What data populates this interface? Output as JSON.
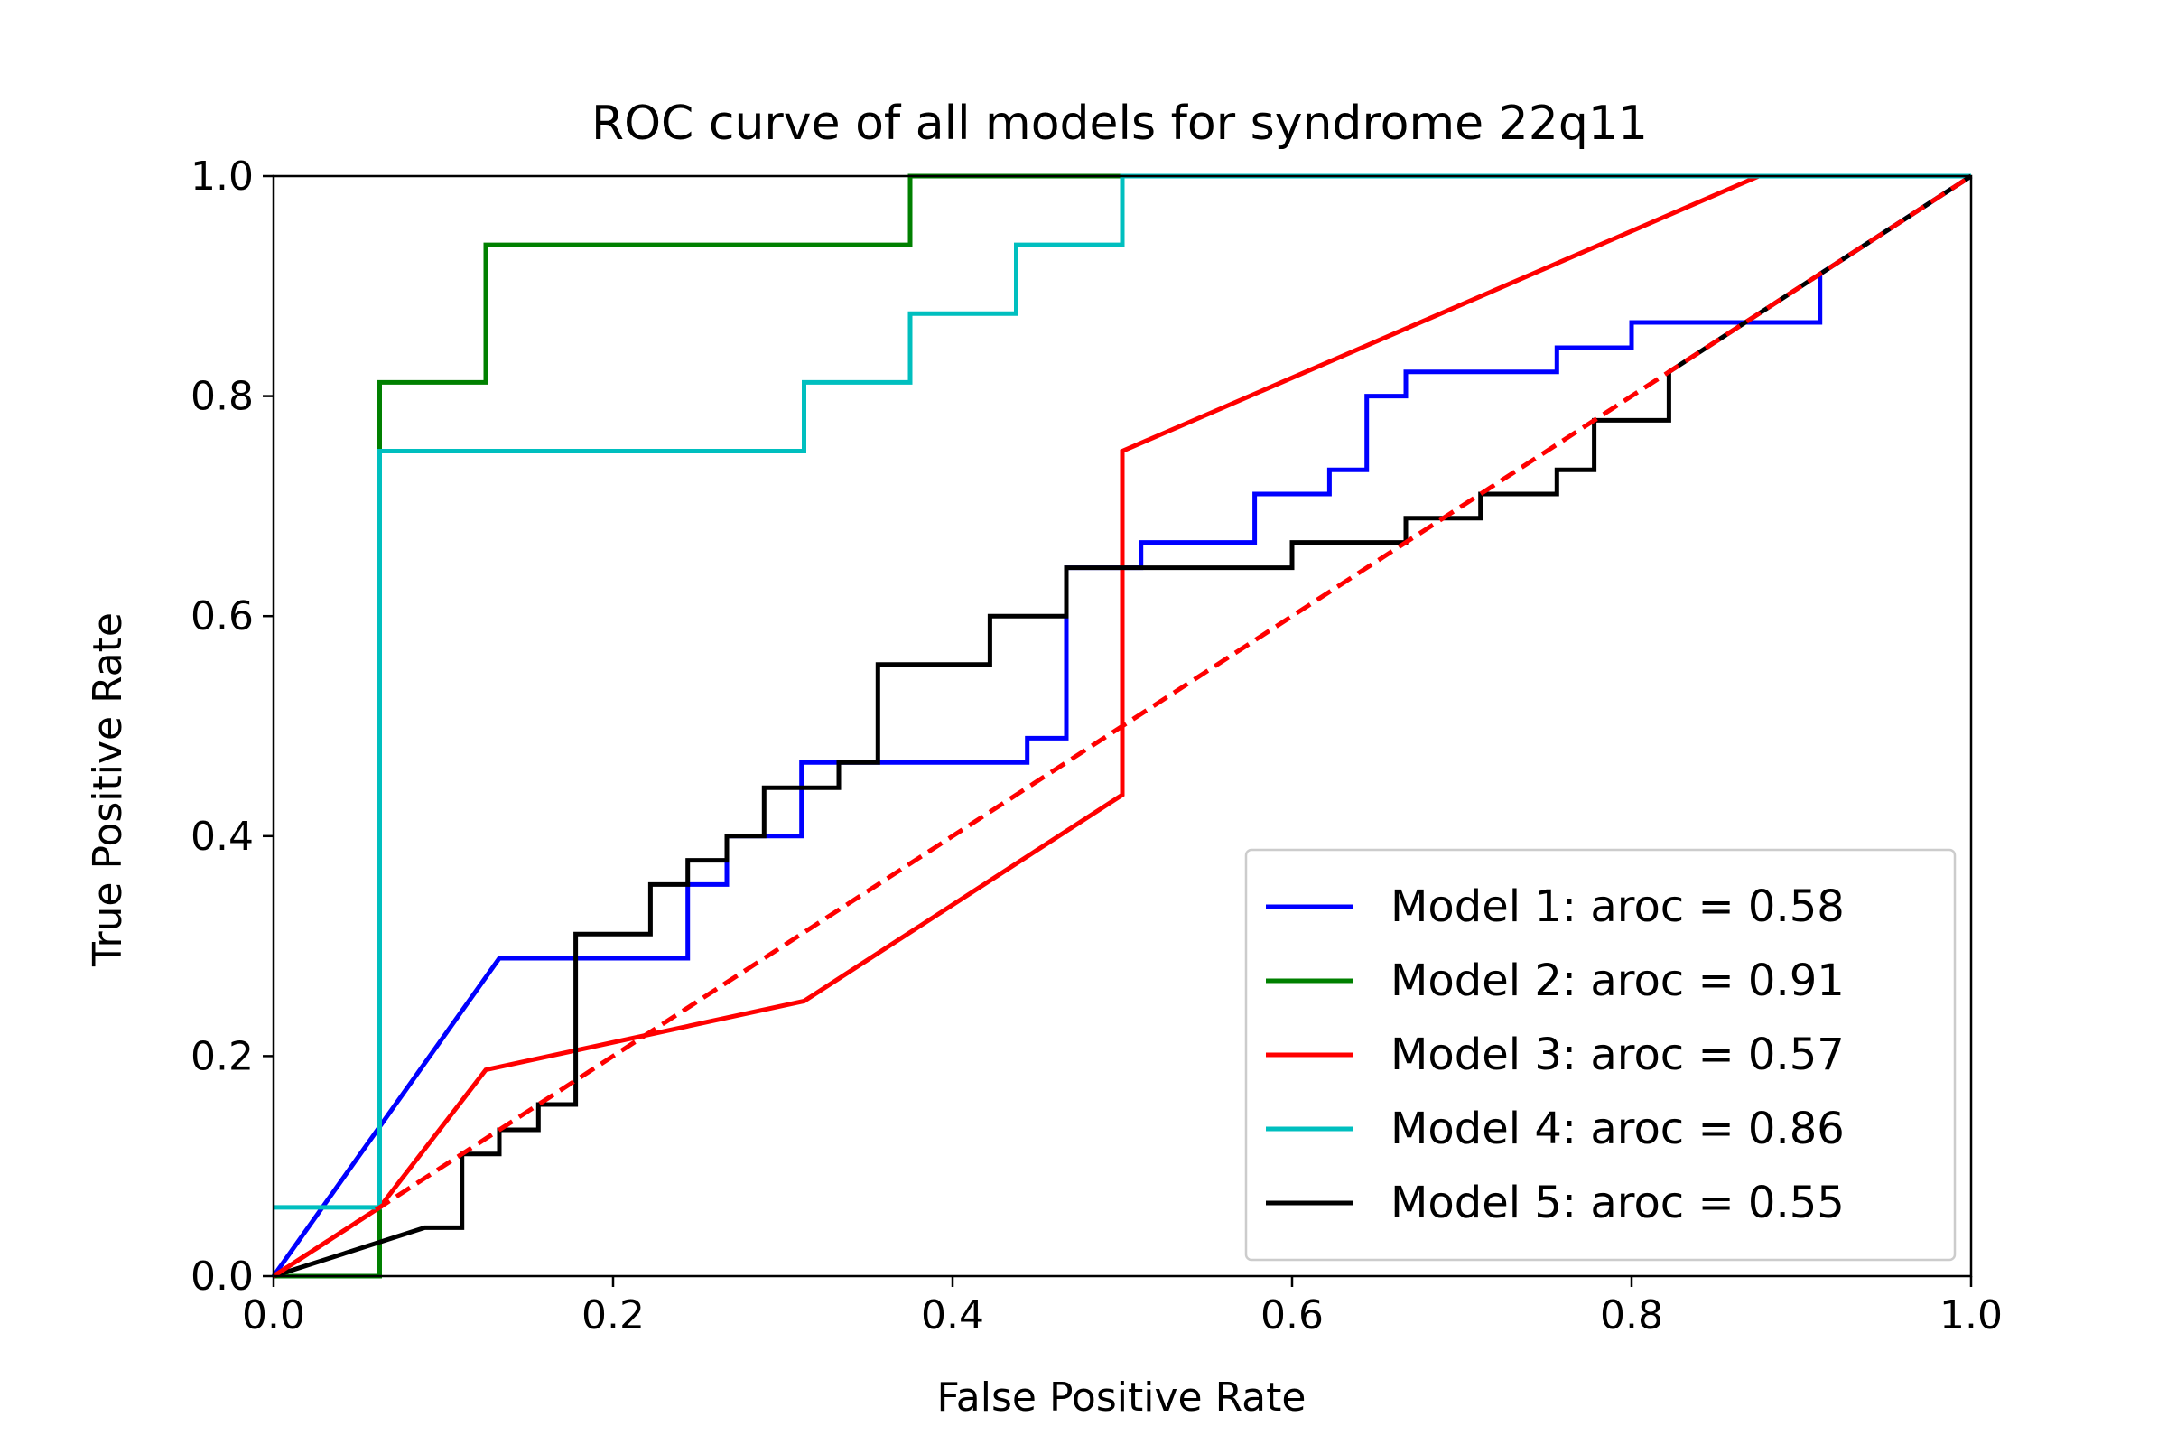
{
  "chart_data": {
    "type": "line",
    "title": "ROC curve of all models for syndrome 22q11",
    "xlabel": "False Positive Rate",
    "ylabel": "True Positive Rate",
    "xlim": [
      0,
      1
    ],
    "ylim": [
      0,
      1
    ],
    "xticks": [
      "0.0",
      "0.2",
      "0.4",
      "0.6",
      "0.8",
      "1.0"
    ],
    "yticks": [
      "0.0",
      "0.2",
      "0.4",
      "0.6",
      "0.8",
      "1.0"
    ],
    "grid": false,
    "legend_position": "bottom-right",
    "series": [
      {
        "name": "Model 1: aroc = 0.58",
        "color": "#0000ff",
        "x": [
          0,
          0.133,
          0.244,
          0.244,
          0.267,
          0.267,
          0.311,
          0.311,
          0.444,
          0.444,
          0.467,
          0.467,
          0.511,
          0.511,
          0.578,
          0.578,
          0.622,
          0.622,
          0.644,
          0.644,
          0.667,
          0.667,
          0.756,
          0.756,
          0.8,
          0.8,
          0.911,
          0.911,
          1.0
        ],
        "y": [
          0,
          0.289,
          0.289,
          0.356,
          0.356,
          0.4,
          0.4,
          0.467,
          0.467,
          0.489,
          0.489,
          0.644,
          0.644,
          0.667,
          0.667,
          0.711,
          0.711,
          0.733,
          0.733,
          0.8,
          0.8,
          0.822,
          0.822,
          0.844,
          0.844,
          0.867,
          0.867,
          0.911,
          1.0
        ]
      },
      {
        "name": "Model 2: aroc = 0.91",
        "color": "#008000",
        "x": [
          0,
          0.0625,
          0.0625,
          0.125,
          0.125,
          0.375,
          0.375,
          1.0
        ],
        "y": [
          0,
          0,
          0.8125,
          0.8125,
          0.9375,
          0.9375,
          1.0,
          1.0
        ]
      },
      {
        "name": "Model 3: aroc = 0.57",
        "color": "#ff0000",
        "x": [
          0,
          0.0625,
          0.125,
          0.3125,
          0.5,
          0.5,
          0.875,
          1.0
        ],
        "y": [
          0,
          0.0625,
          0.1875,
          0.25,
          0.4375,
          0.75,
          1.0,
          1.0
        ]
      },
      {
        "name": "Model 4: aroc = 0.86",
        "color": "#00bfbf",
        "x": [
          0,
          0.0625,
          0.0625,
          0.3125,
          0.3125,
          0.375,
          0.375,
          0.4375,
          0.4375,
          0.5,
          0.5,
          1.0
        ],
        "y": [
          0.0625,
          0.0625,
          0.75,
          0.75,
          0.8125,
          0.8125,
          0.875,
          0.875,
          0.9375,
          0.9375,
          1.0,
          1.0
        ]
      },
      {
        "name": "Model 5: aroc = 0.55",
        "color": "#000000",
        "x": [
          0,
          0.089,
          0.111,
          0.111,
          0.133,
          0.133,
          0.156,
          0.156,
          0.178,
          0.178,
          0.222,
          0.222,
          0.244,
          0.244,
          0.267,
          0.267,
          0.289,
          0.289,
          0.333,
          0.333,
          0.356,
          0.356,
          0.422,
          0.422,
          0.467,
          0.467,
          0.6,
          0.6,
          0.667,
          0.667,
          0.711,
          0.711,
          0.756,
          0.756,
          0.778,
          0.778,
          0.822,
          0.822,
          1.0
        ],
        "y": [
          0,
          0.044,
          0.044,
          0.111,
          0.111,
          0.133,
          0.133,
          0.156,
          0.156,
          0.311,
          0.311,
          0.356,
          0.356,
          0.378,
          0.378,
          0.4,
          0.4,
          0.444,
          0.444,
          0.467,
          0.467,
          0.556,
          0.556,
          0.6,
          0.6,
          0.644,
          0.644,
          0.667,
          0.667,
          0.689,
          0.689,
          0.711,
          0.711,
          0.733,
          0.733,
          0.778,
          0.778,
          0.822,
          1.0
        ]
      }
    ],
    "reference_line": {
      "color": "#ff0000",
      "style": "dashed",
      "x": [
        0,
        1
      ],
      "y": [
        0,
        1
      ]
    }
  }
}
